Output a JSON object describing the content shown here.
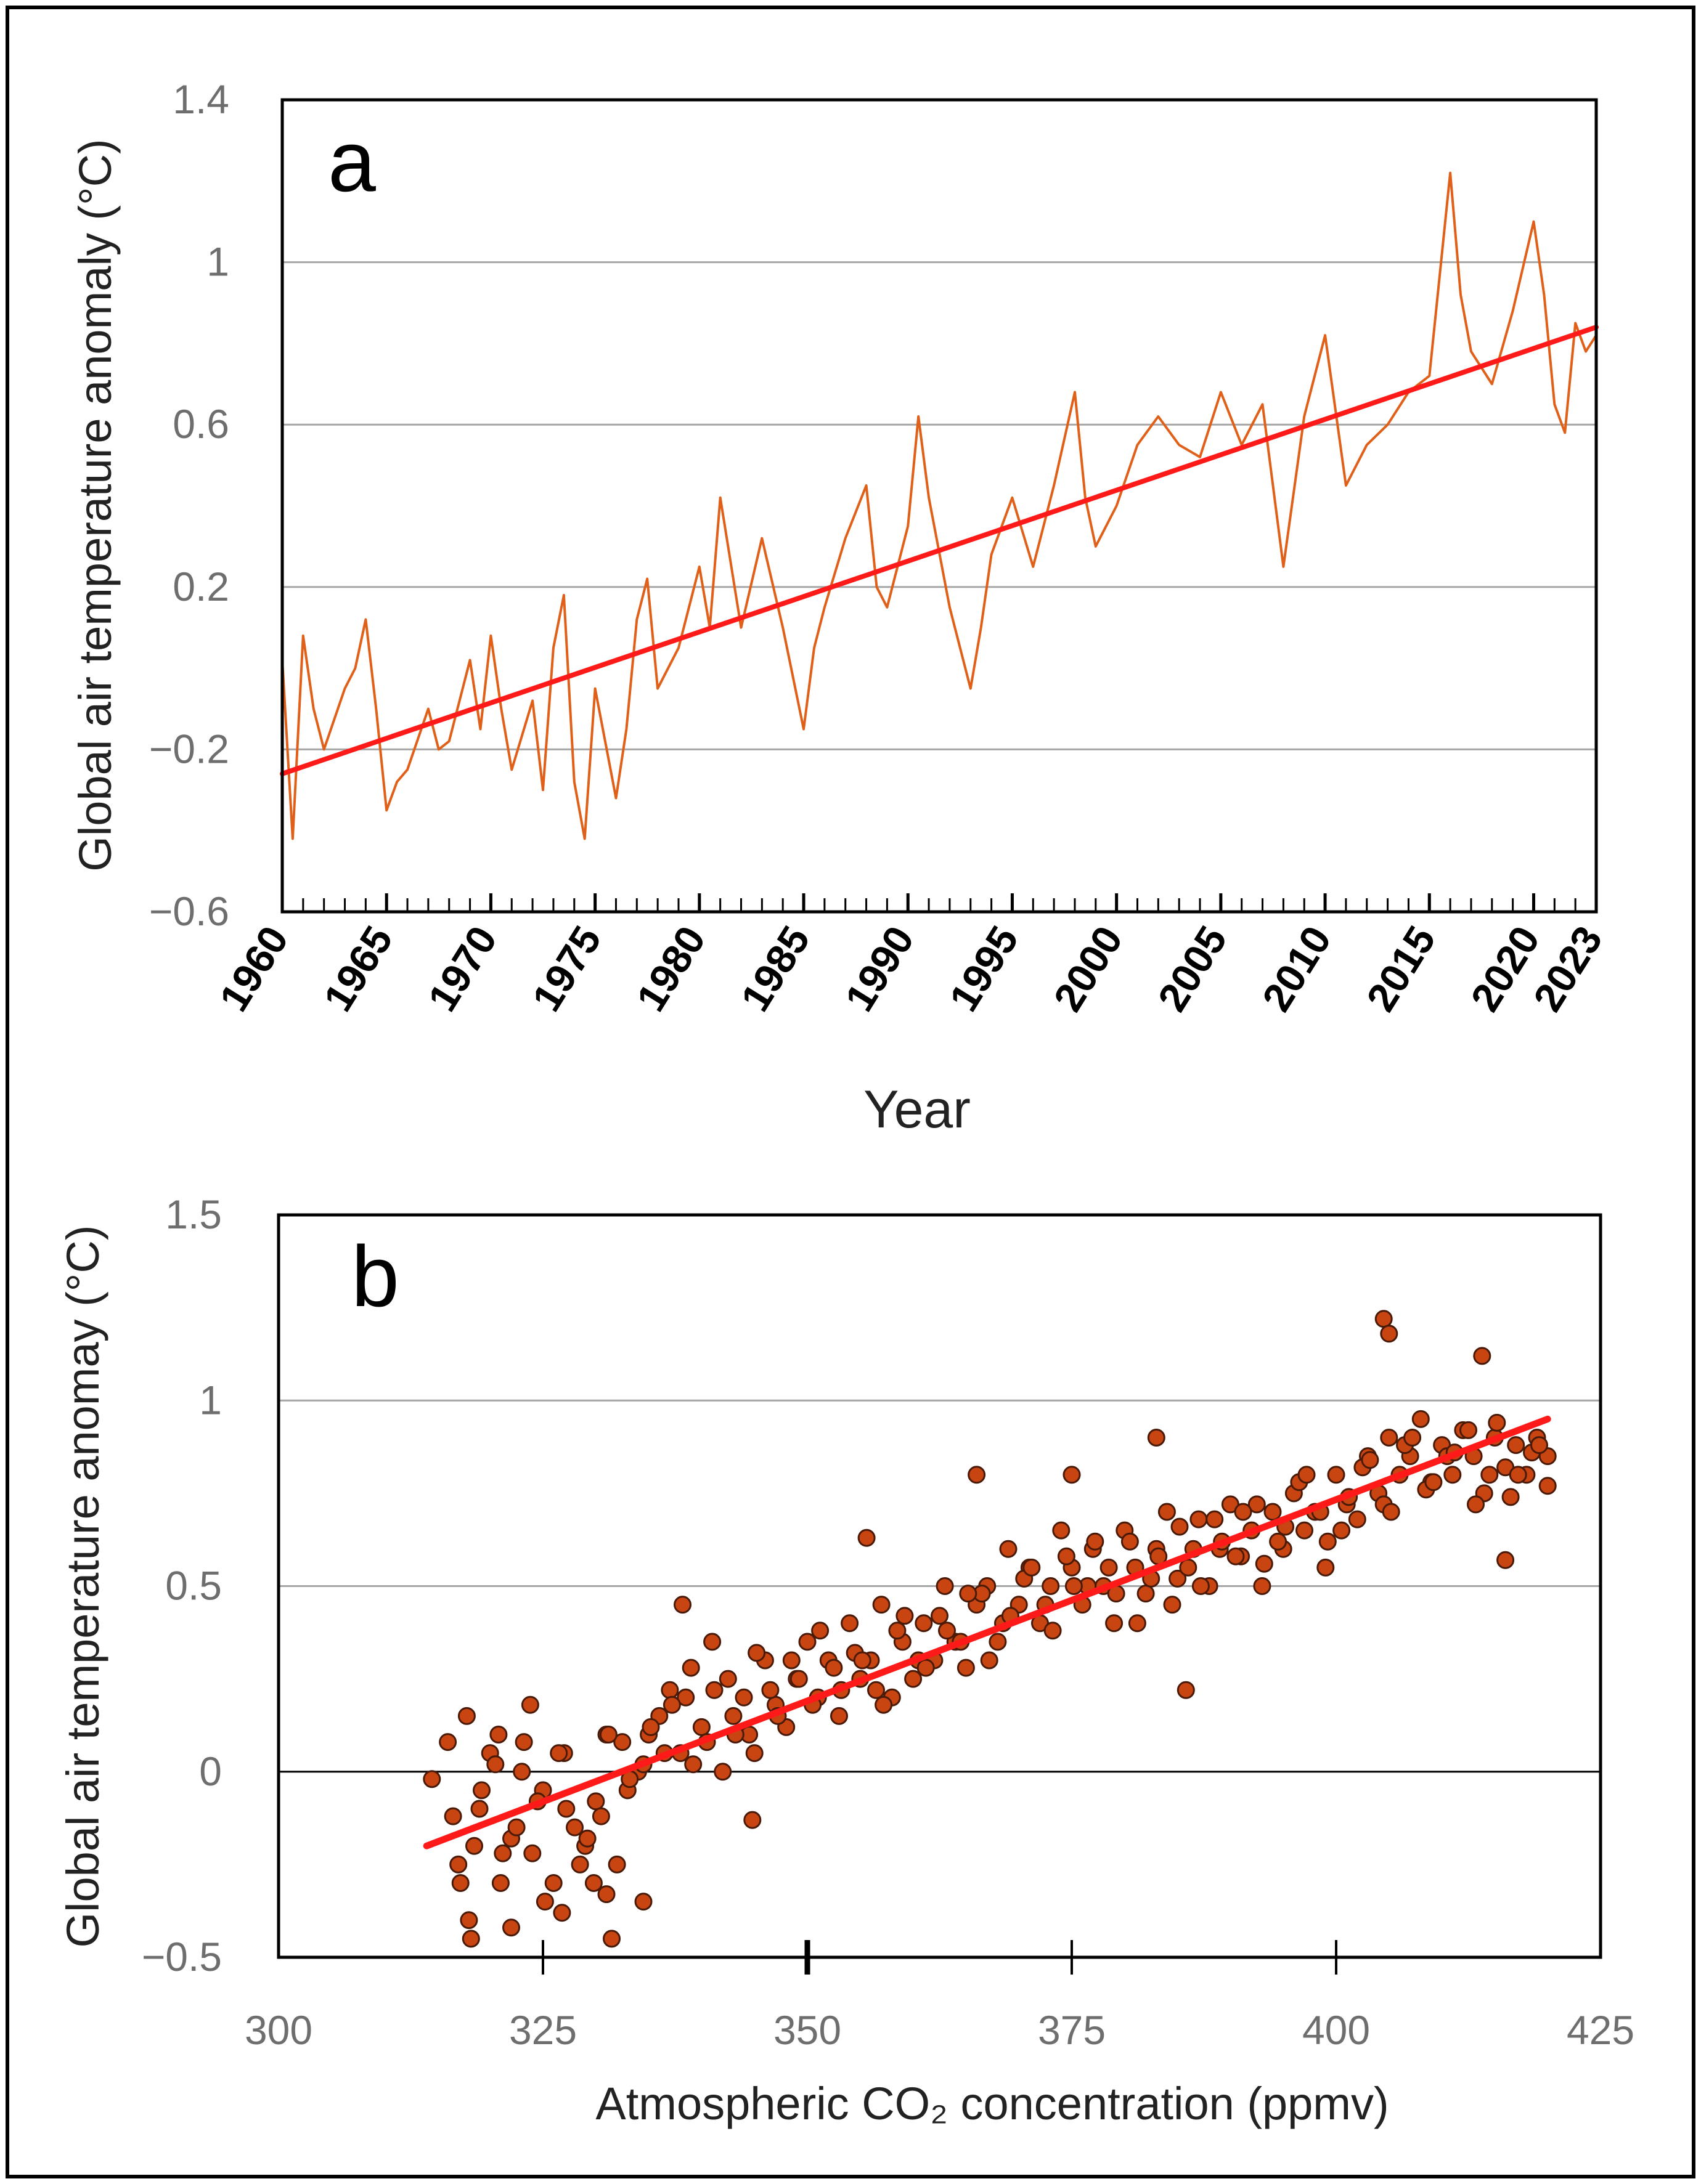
{
  "colors": {
    "series_line": "#e0601a",
    "trend_line": "#ff1a1a",
    "marker_fill": "#c84512",
    "marker_edge": "#4a1a08",
    "grid": "#a6a6a6",
    "frame": "#000000"
  },
  "chart_data": [
    {
      "id": "a",
      "type": "line",
      "panel_label": "a",
      "xlabel": "Year",
      "ylabel": "Global air temperature anomaly (°C)",
      "xlim": [
        1960,
        2023
      ],
      "ylim": [
        -0.6,
        1.4
      ],
      "x_tick_labels": [
        "1960",
        "1965",
        "1970",
        "1975",
        "1980",
        "1985",
        "1990",
        "1995",
        "2000",
        "2005",
        "2010",
        "2015",
        "2020",
        "2023"
      ],
      "y_ticks": [
        -0.6,
        -0.2,
        0.2,
        0.6,
        1,
        1.4
      ],
      "y_tick_labels": [
        "−0.6",
        "−0.2",
        "0.2",
        "0.6",
        "1",
        "1.4"
      ],
      "grid": "horizontal",
      "series": [
        {
          "kind": "monthly-anomaly",
          "x": [
            1960.0,
            1960.5,
            1961.0,
            1961.5,
            1962.0,
            1963.0,
            1963.5,
            1964.0,
            1964.5,
            1965.0,
            1965.5,
            1966.0,
            1967.0,
            1967.5,
            1968.0,
            1969.0,
            1969.5,
            1970.0,
            1970.5,
            1971.0,
            1972.0,
            1972.5,
            1973.0,
            1973.5,
            1974.0,
            1974.5,
            1975.0,
            1976.0,
            1976.5,
            1977.0,
            1977.5,
            1978.0,
            1979.0,
            1980.0,
            1980.5,
            1981.0,
            1982.0,
            1983.0,
            1984.0,
            1985.0,
            1985.5,
            1986.0,
            1987.0,
            1988.0,
            1988.5,
            1989.0,
            1990.0,
            1990.5,
            1991.0,
            1992.0,
            1993.0,
            1993.5,
            1994.0,
            1995.0,
            1996.0,
            1997.0,
            1998.0,
            1998.5,
            1999.0,
            2000.0,
            2001.0,
            2002.0,
            2003.0,
            2004.0,
            2005.0,
            2006.0,
            2007.0,
            2008.0,
            2009.0,
            2010.0,
            2011.0,
            2012.0,
            2013.0,
            2014.0,
            2015.0,
            2016.0,
            2016.5,
            2017.0,
            2018.0,
            2019.0,
            2020.0,
            2020.5,
            2021.0,
            2021.5,
            2022.0,
            2022.5,
            2023.0
          ],
          "y": [
            0.02,
            -0.42,
            0.08,
            -0.1,
            -0.2,
            -0.05,
            0.0,
            0.12,
            -0.1,
            -0.35,
            -0.28,
            -0.25,
            -0.1,
            -0.2,
            -0.18,
            0.02,
            -0.15,
            0.08,
            -0.1,
            -0.25,
            -0.08,
            -0.3,
            0.05,
            0.18,
            -0.28,
            -0.42,
            -0.05,
            -0.32,
            -0.15,
            0.12,
            0.22,
            -0.05,
            0.05,
            0.25,
            0.1,
            0.42,
            0.1,
            0.32,
            0.1,
            -0.15,
            0.05,
            0.15,
            0.32,
            0.45,
            0.2,
            0.15,
            0.35,
            0.62,
            0.42,
            0.15,
            -0.05,
            0.1,
            0.28,
            0.42,
            0.25,
            0.45,
            0.68,
            0.42,
            0.3,
            0.4,
            0.55,
            0.62,
            0.55,
            0.52,
            0.68,
            0.55,
            0.65,
            0.25,
            0.62,
            0.82,
            0.45,
            0.55,
            0.6,
            0.68,
            0.72,
            1.22,
            0.92,
            0.78,
            0.7,
            0.88,
            1.1,
            0.92,
            0.65,
            0.58,
            0.85,
            0.78,
            0.82
          ]
        },
        {
          "kind": "linear-trend",
          "x": [
            1960,
            2023
          ],
          "y": [
            -0.26,
            0.84
          ]
        }
      ]
    },
    {
      "id": "b",
      "type": "scatter",
      "panel_label": "b",
      "xlabel": "Atmospheric CO₂ concentration (ppmv)",
      "ylabel": "Global air temperature anomay (°C)",
      "xlim": [
        300,
        425
      ],
      "ylim": [
        -0.5,
        1.5
      ],
      "x_ticks": [
        300,
        325,
        350,
        375,
        400,
        425
      ],
      "y_ticks": [
        -0.5,
        0,
        0.5,
        1,
        1.5
      ],
      "y_tick_labels": [
        "−0.5",
        "0",
        "0.5",
        "1",
        "1.5"
      ],
      "grid": "horizontal",
      "series": [
        {
          "kind": "scatter",
          "x": [
            314.5,
            316,
            317,
            318,
            319,
            320,
            321,
            322,
            323,
            324,
            325,
            326,
            327,
            328,
            329,
            330,
            331,
            332,
            333,
            334,
            335,
            336,
            337,
            338,
            339,
            340,
            341,
            342,
            343,
            344,
            345,
            346,
            347,
            348,
            349,
            350,
            351,
            352,
            353,
            354,
            355,
            356,
            357,
            358,
            359,
            360,
            361,
            362,
            363,
            364,
            365,
            366,
            367,
            368,
            369,
            370,
            371,
            372,
            373,
            374,
            375,
            376,
            377,
            378,
            379,
            380,
            381,
            382,
            383,
            384,
            385,
            386,
            387,
            388,
            389,
            390,
            391,
            392,
            393,
            394,
            395,
            396,
            397,
            398,
            399,
            400,
            401,
            402,
            403,
            404,
            405,
            406,
            407,
            408,
            409,
            410,
            411,
            412,
            413,
            414,
            415,
            416,
            417,
            418,
            419,
            420,
            316.5,
            318.5,
            320.5,
            322.5,
            324.5,
            326.5,
            328.5,
            330.5,
            332.5,
            334.5,
            336.5,
            338.5,
            340.5,
            342.5,
            344.5,
            346.5,
            348.5,
            350.5,
            352.5,
            354.5,
            356.5,
            358.5,
            360.5,
            362.5,
            364.5,
            366.5,
            368.5,
            370.5,
            372.5,
            374.5,
            376.5,
            378.5,
            380.5,
            382.5,
            384.5,
            386.5,
            388.5,
            390.5,
            392.5,
            394.5,
            396.5,
            398.5,
            400.5,
            402.5,
            404.5,
            406.5,
            408.5,
            410.5,
            412.5,
            414.5,
            416.5,
            418.5,
            317.2,
            319.2,
            321.2,
            323.2,
            325.2,
            327.2,
            329.2,
            331.2,
            333.2,
            335.2,
            337.2,
            339.2,
            341.2,
            343.2,
            345.2,
            347.2,
            349.2,
            351.2,
            353.2,
            355.2,
            357.2,
            359.2,
            361.2,
            363.2,
            365.2,
            367.2,
            369.2,
            371.2,
            373.2,
            375.2,
            377.2,
            379.2,
            381.2,
            383.2,
            385.2,
            387.2,
            389.2,
            391.2,
            393.2,
            395.2,
            397.2,
            399.2,
            401.2,
            403.2,
            405.2,
            407.2,
            409.2,
            411.2,
            413.2,
            415.2,
            417.2,
            419.2,
            317.8,
            320.8,
            323.8,
            326.8,
            329.8,
            331.5,
            334.5,
            338.2,
            344.8,
            355.6,
            366.0,
            375.0,
            383.0,
            385.8,
            404.5,
            405.0,
            413.8,
            416.0,
            420.0,
            318.2,
            322.0,
            331.0
          ],
          "y": [
            -0.02,
            0.08,
            -0.25,
            -0.4,
            -0.1,
            0.05,
            -0.3,
            -0.18,
            0.0,
            -0.22,
            -0.05,
            -0.3,
            0.05,
            -0.15,
            -0.2,
            -0.08,
            0.1,
            -0.25,
            -0.05,
            0.0,
            0.1,
            0.15,
            0.22,
            0.05,
            0.28,
            0.12,
            0.35,
            0.0,
            0.15,
            0.2,
            0.05,
            0.3,
            0.18,
            0.12,
            0.25,
            0.35,
            0.2,
            0.3,
            0.15,
            0.4,
            0.25,
            0.3,
            0.45,
            0.2,
            0.35,
            0.25,
            0.4,
            0.3,
            0.5,
            0.35,
            0.28,
            0.45,
            0.5,
            0.35,
            0.6,
            0.45,
            0.55,
            0.4,
            0.5,
            0.65,
            0.55,
            0.45,
            0.6,
            0.5,
            0.4,
            0.65,
            0.55,
            0.48,
            0.6,
            0.7,
            0.52,
            0.55,
            0.68,
            0.5,
            0.6,
            0.72,
            0.58,
            0.65,
            0.5,
            0.7,
            0.6,
            0.75,
            0.65,
            0.7,
            0.55,
            0.8,
            0.72,
            0.68,
            0.85,
            0.75,
            0.9,
            0.8,
            0.85,
            0.95,
            0.78,
            0.88,
            0.8,
            0.92,
            0.85,
            0.75,
            0.9,
            0.82,
            0.88,
            0.8,
            0.9,
            0.85,
            -0.12,
            -0.2,
            0.02,
            -0.15,
            -0.08,
            0.05,
            -0.25,
            -0.12,
            0.08,
            0.02,
            0.05,
            0.2,
            0.08,
            0.25,
            0.1,
            0.22,
            0.3,
            0.18,
            0.28,
            0.32,
            0.22,
            0.38,
            0.3,
            0.42,
            0.35,
            0.48,
            0.4,
            0.52,
            0.45,
            0.58,
            0.5,
            0.55,
            0.62,
            0.52,
            0.45,
            0.6,
            0.68,
            0.58,
            0.72,
            0.62,
            0.78,
            0.7,
            0.65,
            0.82,
            0.72,
            0.88,
            0.76,
            0.85,
            0.92,
            0.8,
            0.74,
            0.86,
            -0.3,
            -0.05,
            -0.22,
            0.08,
            -0.35,
            -0.1,
            -0.18,
            0.1,
            -0.02,
            0.12,
            0.18,
            0.02,
            0.22,
            0.1,
            0.32,
            0.15,
            0.25,
            0.38,
            0.22,
            0.3,
            0.18,
            0.42,
            0.28,
            0.38,
            0.48,
            0.3,
            0.42,
            0.55,
            0.38,
            0.5,
            0.62,
            0.48,
            0.4,
            0.58,
            0.66,
            0.5,
            0.62,
            0.7,
            0.56,
            0.66,
            0.8,
            0.62,
            0.74,
            0.84,
            0.7,
            0.9,
            0.78,
            0.86,
            0.72,
            0.94,
            0.8,
            0.88,
            0.15,
            0.1,
            0.18,
            -0.38,
            -0.3,
            -0.45,
            -0.35,
            0.45,
            -0.13,
            0.63,
            0.8,
            0.8,
            0.9,
            0.22,
            1.22,
            1.18,
            1.12,
            0.57,
            0.77,
            -0.45,
            -0.42,
            -0.33
          ]
        },
        {
          "kind": "linear-trend",
          "x": [
            314,
            420
          ],
          "y": [
            -0.2,
            0.95
          ]
        }
      ]
    }
  ]
}
